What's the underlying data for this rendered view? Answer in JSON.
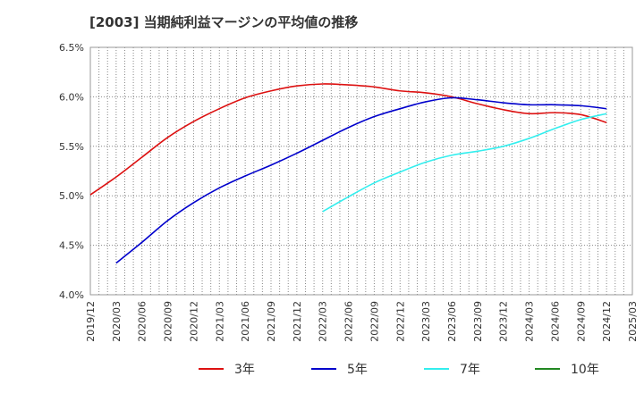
{
  "chart_data": {
    "type": "line",
    "title": "[2003]  当期純利益マージンの平均値の推移",
    "xlabel": "",
    "ylabel": "",
    "x_ticks": [
      "2019/12",
      "2020/03",
      "2020/06",
      "2020/09",
      "2020/12",
      "2021/03",
      "2021/06",
      "2021/09",
      "2021/12",
      "2022/03",
      "2022/06",
      "2022/09",
      "2022/12",
      "2023/03",
      "2023/06",
      "2023/09",
      "2023/12",
      "2024/03",
      "2024/06",
      "2024/09",
      "2024/12",
      "2025/03"
    ],
    "y_ticks": [
      "4.0%",
      "4.5%",
      "5.0%",
      "5.5%",
      "6.0%",
      "6.5%"
    ],
    "ylim": [
      4.0,
      6.5
    ],
    "grid": true,
    "legend_position": "bottom",
    "series": [
      {
        "name": "3年",
        "color": "#dd1111",
        "x": [
          "2019/12",
          "2020/03",
          "2020/06",
          "2020/09",
          "2020/12",
          "2021/03",
          "2021/06",
          "2021/09",
          "2021/12",
          "2022/03",
          "2022/06",
          "2022/09",
          "2022/12",
          "2023/03",
          "2023/06",
          "2023/09",
          "2023/12",
          "2024/03",
          "2024/06",
          "2024/09",
          "2024/12"
        ],
        "values": [
          5.01,
          5.19,
          5.39,
          5.59,
          5.75,
          5.88,
          5.99,
          6.06,
          6.11,
          6.13,
          6.12,
          6.1,
          6.06,
          6.04,
          6.0,
          5.93,
          5.87,
          5.83,
          5.84,
          5.82,
          5.74
        ]
      },
      {
        "name": "5年",
        "color": "#0000cc",
        "x": [
          "2020/03",
          "2020/06",
          "2020/09",
          "2020/12",
          "2021/03",
          "2021/06",
          "2021/09",
          "2021/12",
          "2022/03",
          "2022/06",
          "2022/09",
          "2022/12",
          "2023/03",
          "2023/06",
          "2023/09",
          "2023/12",
          "2024/03",
          "2024/06",
          "2024/09",
          "2024/12"
        ],
        "values": [
          4.32,
          4.53,
          4.75,
          4.93,
          5.08,
          5.2,
          5.31,
          5.43,
          5.56,
          5.69,
          5.8,
          5.88,
          5.95,
          5.99,
          5.97,
          5.94,
          5.92,
          5.92,
          5.91,
          5.88
        ]
      },
      {
        "name": "7年",
        "color": "#33eeee",
        "x": [
          "2022/03",
          "2022/06",
          "2022/09",
          "2022/12",
          "2023/03",
          "2023/06",
          "2023/09",
          "2023/12",
          "2024/03",
          "2024/06",
          "2024/09",
          "2024/12"
        ],
        "values": [
          4.84,
          4.99,
          5.13,
          5.24,
          5.34,
          5.41,
          5.45,
          5.5,
          5.58,
          5.68,
          5.77,
          5.83
        ]
      },
      {
        "name": "10年",
        "color": "#228822",
        "x": [],
        "values": []
      }
    ]
  }
}
